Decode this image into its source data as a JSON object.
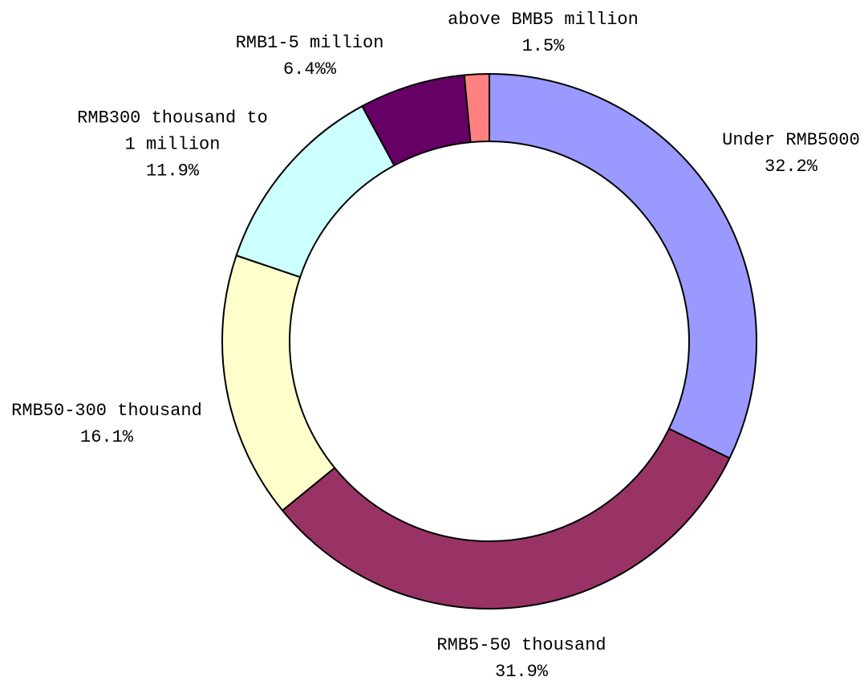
{
  "chart_data": {
    "type": "donut",
    "categories": [
      "Under RMB5000",
      "RMB5-50 thousand",
      "RMB50-300 thousand",
      "RMB300 thousand to 1 million",
      "RMB1-5 million",
      "above BMB5 million"
    ],
    "values": [
      32.2,
      31.9,
      16.1,
      11.9,
      6.4,
      1.5
    ],
    "value_labels": [
      "32.2%",
      "31.9%",
      "16.1%",
      "11.9%",
      "6.4%%",
      "1.5%"
    ],
    "colors": [
      "#9999ff",
      "#993366",
      "#ffffcc",
      "#ccffff",
      "#660066",
      "#ff8080"
    ]
  }
}
